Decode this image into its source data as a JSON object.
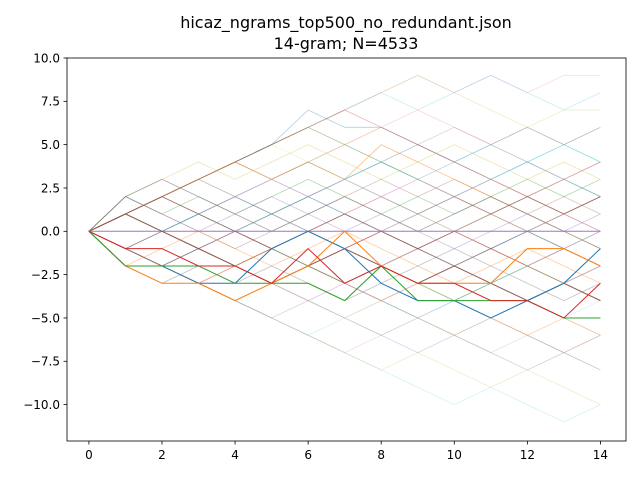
{
  "chart_data": {
    "type": "line",
    "title_line1": "hicaz_ngrams_top500_no_redundant.json",
    "title_line2": "14-gram; N=4533",
    "xlabel": "",
    "ylabel": "",
    "xlim": [
      -0.6,
      14.7
    ],
    "ylim": [
      -12.1,
      10.0
    ],
    "x_ticks": [
      0,
      2,
      4,
      6,
      8,
      10,
      12,
      14
    ],
    "y_ticks": [
      10.0,
      7.5,
      5.0,
      2.5,
      0.0,
      -2.5,
      -5.0,
      -7.5,
      -10.0
    ],
    "x_tick_labels": [
      "0",
      "2",
      "4",
      "6",
      "8",
      "10",
      "12",
      "14"
    ],
    "y_tick_labels": [
      "10.0",
      "7.5",
      "5.0",
      "2.5",
      "0.0",
      "−2.5",
      "−5.0",
      "−7.5",
      "−10.0"
    ],
    "grid": false,
    "x": [
      0,
      1,
      2,
      3,
      4,
      5,
      6,
      7,
      8,
      9,
      10,
      11,
      12,
      13,
      14
    ],
    "series": [
      {
        "color": "#1f77b4",
        "alpha": 1.0,
        "values": [
          0,
          -2,
          -2,
          -3,
          -3,
          -1,
          0,
          -1,
          -3,
          -4,
          -4,
          -5,
          -4,
          -3,
          -1
        ]
      },
      {
        "color": "#ff7f0e",
        "alpha": 1.0,
        "values": [
          0,
          -2,
          -3,
          -3,
          -4,
          -3,
          -2,
          0,
          -2,
          -3,
          -3,
          -3,
          -1,
          -1,
          -2
        ]
      },
      {
        "color": "#2ca02c",
        "alpha": 1.0,
        "values": [
          0,
          -2,
          -2,
          -2,
          -3,
          -3,
          -3,
          -4,
          -2,
          -4,
          -4,
          -4,
          -4,
          -5,
          -5
        ]
      },
      {
        "color": "#d62728",
        "alpha": 1.0,
        "values": [
          0,
          -1,
          -1,
          -2,
          -2,
          -3,
          -1,
          -3,
          -2,
          -3,
          -3,
          -4,
          -4,
          -5,
          -3
        ]
      },
      {
        "color": "#9467bd",
        "alpha": 0.9,
        "values": [
          0,
          0,
          0,
          0,
          0,
          0,
          0,
          0,
          0,
          0,
          0,
          0,
          0,
          0,
          0
        ]
      },
      {
        "color": "#8c564b",
        "alpha": 0.9,
        "values": [
          0,
          1,
          0,
          -1,
          -2,
          -3,
          -2,
          -1,
          -2,
          -3,
          -2,
          -3,
          -4,
          -3,
          -4
        ]
      },
      {
        "color": "#7f7f7f",
        "alpha": 0.7,
        "values": [
          0,
          2,
          3,
          2,
          1,
          0,
          1,
          2,
          1,
          0,
          1,
          2,
          1,
          0,
          -1
        ]
      },
      {
        "color": "#8c564b",
        "alpha": 0.7,
        "values": [
          0,
          1,
          2,
          1,
          0,
          -1,
          0,
          1,
          0,
          -1,
          0,
          1,
          2,
          1,
          2
        ]
      },
      {
        "color": "#ff7f0e",
        "alpha": 0.5,
        "values": [
          0,
          1,
          2,
          3,
          4,
          3,
          4,
          3,
          5,
          4,
          3,
          2,
          1,
          0,
          -1
        ]
      },
      {
        "color": "#1f77b4",
        "alpha": 0.35,
        "values": [
          0,
          1,
          2,
          3,
          4,
          5,
          7,
          6,
          6,
          5,
          4,
          3,
          4,
          3,
          2
        ]
      },
      {
        "color": "#d62728",
        "alpha": 0.35,
        "values": [
          0,
          1,
          2,
          3,
          4,
          5,
          6,
          7,
          6,
          5,
          4,
          3,
          2,
          3,
          4
        ]
      },
      {
        "color": "#e377c2",
        "alpha": 0.25,
        "values": [
          0,
          1,
          2,
          3,
          4,
          5,
          6,
          7,
          8,
          9,
          8,
          9,
          8,
          9,
          9
        ]
      },
      {
        "color": "#bcbd22",
        "alpha": 0.25,
        "values": [
          0,
          1,
          2,
          3,
          4,
          5,
          6,
          7,
          8,
          9,
          8,
          7,
          6,
          7,
          7
        ]
      },
      {
        "color": "#17becf",
        "alpha": 0.25,
        "values": [
          0,
          1,
          2,
          3,
          4,
          5,
          6,
          7,
          8,
          7,
          8,
          9,
          8,
          7,
          8
        ]
      },
      {
        "color": "#2ca02c",
        "alpha": 0.3,
        "values": [
          0,
          1,
          2,
          3,
          4,
          5,
          6,
          5,
          4,
          3,
          2,
          1,
          0,
          -1,
          -2
        ]
      },
      {
        "color": "#9467bd",
        "alpha": 0.3,
        "values": [
          0,
          -1,
          -2,
          -3,
          -4,
          -5,
          -4,
          -5,
          -6,
          -7,
          -6,
          -5,
          -6,
          -7,
          -8
        ]
      },
      {
        "color": "#e377c2",
        "alpha": 0.25,
        "values": [
          0,
          -1,
          -2,
          -3,
          -4,
          -5,
          -6,
          -7,
          -6,
          -5,
          -6,
          -7,
          -8,
          -7,
          -6
        ]
      },
      {
        "color": "#bcbd22",
        "alpha": 0.25,
        "values": [
          0,
          -1,
          -2,
          -3,
          -4,
          -5,
          -6,
          -7,
          -8,
          -7,
          -8,
          -9,
          -8,
          -9,
          -10
        ]
      },
      {
        "color": "#17becf",
        "alpha": 0.2,
        "values": [
          0,
          -1,
          -2,
          -3,
          -4,
          -5,
          -6,
          -7,
          -8,
          -9,
          -10,
          -9,
          -10,
          -11,
          -10
        ]
      },
      {
        "color": "#7f7f7f",
        "alpha": 0.4,
        "values": [
          0,
          -1,
          0,
          1,
          2,
          1,
          0,
          -1,
          0,
          1,
          0,
          -1,
          0,
          1,
          0
        ]
      },
      {
        "color": "#1f77b4",
        "alpha": 0.4,
        "values": [
          0,
          -1,
          -2,
          -1,
          0,
          1,
          2,
          1,
          0,
          -1,
          -2,
          -1,
          0,
          -1,
          -2
        ]
      },
      {
        "color": "#ff7f0e",
        "alpha": 0.4,
        "values": [
          0,
          -2,
          -1,
          0,
          -1,
          -2,
          -1,
          0,
          -1,
          -2,
          -3,
          -2,
          -1,
          -2,
          -3
        ]
      },
      {
        "color": "#2ca02c",
        "alpha": 0.4,
        "values": [
          0,
          2,
          1,
          2,
          1,
          2,
          3,
          2,
          1,
          2,
          1,
          2,
          3,
          2,
          3
        ]
      },
      {
        "color": "#d62728",
        "alpha": 0.4,
        "values": [
          0,
          1,
          0,
          -1,
          0,
          -1,
          0,
          -1,
          0,
          -1,
          0,
          -1,
          -2,
          -1,
          -2
        ]
      },
      {
        "color": "#9467bd",
        "alpha": 0.4,
        "values": [
          0,
          2,
          1,
          0,
          1,
          2,
          1,
          0,
          1,
          0,
          -1,
          0,
          1,
          0,
          1
        ]
      },
      {
        "color": "#8c564b",
        "alpha": 0.45,
        "values": [
          0,
          -1,
          -2,
          -1,
          -2,
          -3,
          -2,
          -3,
          -2,
          -1,
          -2,
          -1,
          -2,
          -3,
          -2
        ]
      },
      {
        "color": "#e377c2",
        "alpha": 0.4,
        "values": [
          0,
          1,
          2,
          1,
          2,
          3,
          2,
          3,
          2,
          3,
          2,
          3,
          2,
          1,
          0
        ]
      },
      {
        "color": "#7f7f7f",
        "alpha": 0.45,
        "values": [
          0,
          -2,
          -3,
          -2,
          -3,
          -2,
          -3,
          -4,
          -3,
          -2,
          -1,
          -2,
          -3,
          -4,
          -3
        ]
      },
      {
        "color": "#bcbd22",
        "alpha": 0.35,
        "values": [
          0,
          2,
          3,
          4,
          3,
          4,
          5,
          4,
          3,
          4,
          5,
          4,
          3,
          4,
          3
        ]
      },
      {
        "color": "#17becf",
        "alpha": 0.35,
        "values": [
          0,
          -1,
          0,
          1,
          2,
          3,
          4,
          3,
          2,
          1,
          2,
          3,
          4,
          5,
          4
        ]
      },
      {
        "color": "#1f77b4",
        "alpha": 0.35,
        "values": [
          0,
          1,
          0,
          1,
          0,
          -1,
          -2,
          -3,
          -4,
          -5,
          -4,
          -3,
          -2,
          -1,
          0
        ]
      },
      {
        "color": "#ff7f0e",
        "alpha": 0.35,
        "values": [
          0,
          -1,
          -2,
          -3,
          -2,
          -1,
          -2,
          -3,
          -4,
          -3,
          -4,
          -5,
          -6,
          -5,
          -6
        ]
      },
      {
        "color": "#2ca02c",
        "alpha": 0.35,
        "values": [
          0,
          1,
          0,
          -1,
          -2,
          -1,
          -2,
          -3,
          -2,
          -3,
          -4,
          -3,
          -2,
          -3,
          -4
        ]
      },
      {
        "color": "#d62728",
        "alpha": 0.35,
        "values": [
          0,
          -1,
          0,
          -1,
          -2,
          -1,
          0,
          1,
          2,
          1,
          2,
          1,
          0,
          1,
          2
        ]
      },
      {
        "color": "#8c564b",
        "alpha": 0.35,
        "values": [
          0,
          2,
          1,
          0,
          -1,
          0,
          1,
          2,
          3,
          2,
          3,
          2,
          1,
          2,
          1
        ]
      },
      {
        "color": "#9467bd",
        "alpha": 0.3,
        "values": [
          0,
          -1,
          -2,
          -1,
          0,
          -1,
          -2,
          -1,
          0,
          -1,
          -2,
          -3,
          -4,
          -3,
          -4
        ]
      },
      {
        "color": "#7f7f7f",
        "alpha": 0.3,
        "values": [
          0,
          1,
          2,
          3,
          2,
          1,
          2,
          1,
          0,
          1,
          2,
          1,
          2,
          1,
          2
        ]
      },
      {
        "color": "#e377c2",
        "alpha": 0.3,
        "values": [
          0,
          -1,
          -2,
          -3,
          -2,
          -3,
          -4,
          -3,
          -4,
          -3,
          -2,
          -3,
          -4,
          -3,
          -2
        ]
      },
      {
        "color": "#1f77b4",
        "alpha": 0.3,
        "values": [
          0,
          1,
          2,
          3,
          4,
          3,
          2,
          3,
          4,
          3,
          4,
          5,
          6,
          5,
          6
        ]
      },
      {
        "color": "#ff7f0e",
        "alpha": 0.3,
        "values": [
          0,
          -1,
          -2,
          -3,
          -4,
          -3,
          -2,
          -1,
          0,
          -1,
          -2,
          -1,
          -2,
          -3,
          -4
        ]
      },
      {
        "color": "#17becf",
        "alpha": 0.25,
        "values": [
          0,
          1,
          0,
          1,
          2,
          1,
          2,
          3,
          4,
          5,
          4,
          5,
          4,
          5,
          4
        ]
      },
      {
        "color": "#bcbd22",
        "alpha": 0.25,
        "values": [
          0,
          -1,
          -2,
          -1,
          -2,
          -3,
          -4,
          -5,
          -4,
          -5,
          -6,
          -5,
          -6,
          -7,
          -6
        ]
      },
      {
        "color": "#2ca02c",
        "alpha": 0.25,
        "values": [
          0,
          1,
          2,
          1,
          0,
          1,
          2,
          3,
          4,
          3,
          2,
          3,
          2,
          3,
          2
        ]
      },
      {
        "color": "#d62728",
        "alpha": 0.25,
        "values": [
          0,
          -1,
          -2,
          -3,
          -2,
          -1,
          -2,
          -1,
          -2,
          -1,
          0,
          -1,
          0,
          -1,
          0
        ]
      },
      {
        "color": "#8c564b",
        "alpha": 0.25,
        "values": [
          0,
          1,
          2,
          3,
          2,
          3,
          4,
          5,
          4,
          5,
          6,
          5,
          4,
          3,
          4
        ]
      },
      {
        "color": "#9467bd",
        "alpha": 0.2,
        "values": [
          0,
          -1,
          0,
          -1,
          -2,
          -3,
          -4,
          -3,
          -4,
          -5,
          -6,
          -7,
          -6,
          -7,
          -6
        ]
      },
      {
        "color": "#7f7f7f",
        "alpha": 0.2,
        "values": [
          0,
          1,
          2,
          1,
          2,
          1,
          0,
          -1,
          -2,
          -1,
          -2,
          -3,
          -4,
          -5,
          -6
        ]
      },
      {
        "color": "#e377c2",
        "alpha": 0.2,
        "values": [
          0,
          -1,
          -2,
          -1,
          0,
          1,
          0,
          1,
          2,
          3,
          2,
          1,
          2,
          3,
          2
        ]
      },
      {
        "color": "#1f77b4",
        "alpha": 0.2,
        "values": [
          0,
          -1,
          0,
          1,
          0,
          1,
          0,
          -1,
          -2,
          -3,
          -2,
          -1,
          0,
          1,
          2
        ]
      },
      {
        "color": "#ff7f0e",
        "alpha": 0.2,
        "values": [
          0,
          1,
          2,
          3,
          4,
          3,
          4,
          5,
          6,
          5,
          4,
          3,
          2,
          1,
          0
        ]
      },
      {
        "color": "#17becf",
        "alpha": 0.18,
        "values": [
          0,
          -1,
          -2,
          -3,
          -4,
          -5,
          -6,
          -5,
          -4,
          -3,
          -4,
          -5,
          -4,
          -5,
          -4
        ]
      },
      {
        "color": "#bcbd22",
        "alpha": 0.18,
        "values": [
          0,
          1,
          2,
          3,
          4,
          5,
          4,
          3,
          2,
          1,
          0,
          1,
          2,
          1,
          2
        ]
      },
      {
        "color": "#2ca02c",
        "alpha": 0.18,
        "values": [
          0,
          -1,
          -2,
          -3,
          -4,
          -3,
          -4,
          -5,
          -6,
          -5,
          -6,
          -7,
          -8,
          -7,
          -8
        ]
      },
      {
        "color": "#d62728",
        "alpha": 0.18,
        "values": [
          0,
          1,
          2,
          3,
          4,
          5,
          6,
          5,
          6,
          7,
          6,
          5,
          6,
          5,
          6
        ]
      }
    ]
  }
}
